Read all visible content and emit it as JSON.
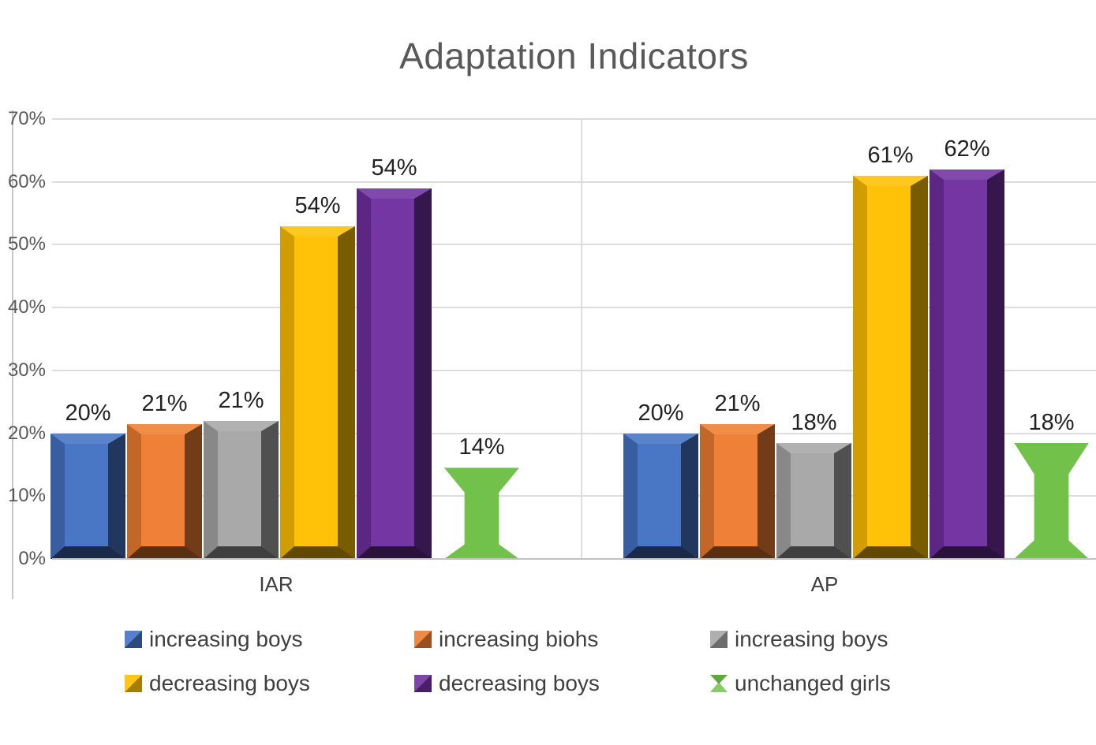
{
  "title": "Adaptation Indicators",
  "chart_data": {
    "type": "bar",
    "title": "Adaptation Indicators",
    "categories": [
      "IAR",
      "AP"
    ],
    "series": [
      {
        "name": "increasing boys",
        "color": "#4472C4",
        "values": [
          20,
          20
        ],
        "labels": [
          "20%",
          "20%"
        ]
      },
      {
        "name": "increasing biohs",
        "color": "#ED7D31",
        "values": [
          21,
          21
        ],
        "labels": [
          "21%",
          "21%"
        ]
      },
      {
        "name": "increasing boys",
        "color": "#A6A6A6",
        "values": [
          21,
          18
        ],
        "labels": [
          "21%",
          "18%"
        ]
      },
      {
        "name": "decreasing boys",
        "color": "#FFC000",
        "values": [
          54,
          61
        ],
        "labels": [
          "54%",
          "61%"
        ]
      },
      {
        "name": "decreasing boys",
        "color": "#7030A0",
        "values": [
          54,
          62
        ],
        "labels": [
          "54%",
          "62%"
        ]
      },
      {
        "name": "unchanged girls",
        "color": "#6EC047",
        "values": [
          14,
          18
        ],
        "labels": [
          "14%",
          "18%"
        ],
        "shape": "hourglass"
      }
    ],
    "bar_heights_display_pct": [
      [
        20,
        21.5,
        22,
        53,
        59,
        14.5
      ],
      [
        20,
        21.5,
        18.5,
        61,
        62,
        18.5
      ]
    ],
    "ylim": [
      0,
      70
    ],
    "yticks": [
      "70%",
      "60%",
      "50%",
      "40%",
      "30%",
      "20%",
      "10%",
      "0%"
    ],
    "grid": true,
    "legend_position": "bottom",
    "axis_color": "#c2c2c2",
    "gridline_color": "#dddddd",
    "text_color": "#595959",
    "label_color": "#222222"
  }
}
